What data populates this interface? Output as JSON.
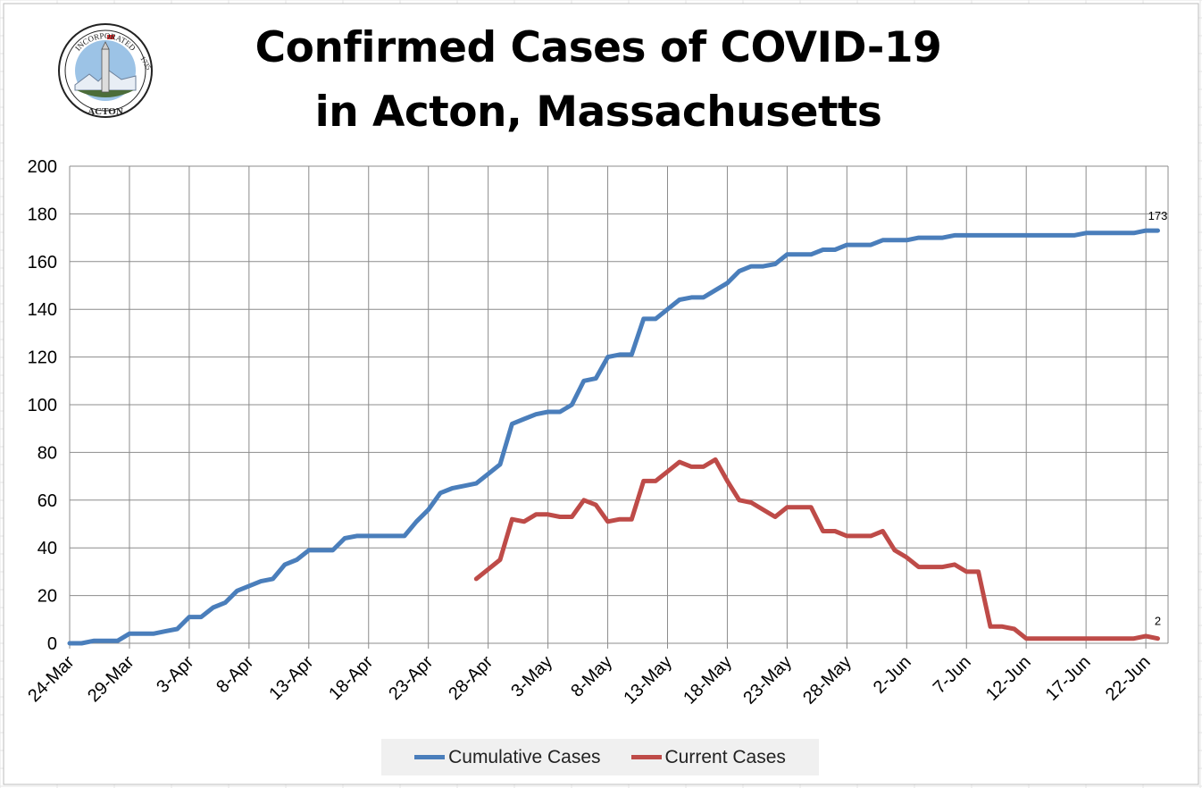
{
  "logo": {
    "top_text": "INCORPORATED",
    "year": "1735",
    "bottom_text": "ACTON"
  },
  "chart_data": {
    "type": "line",
    "title": "Confirmed Cases of COVID-19",
    "subtitle": "in Acton, Massachusetts",
    "xlabel": "",
    "ylabel": "",
    "start_date": "24-Mar",
    "x_tick_labels": [
      "24-Mar",
      "29-Mar",
      "3-Apr",
      "8-Apr",
      "13-Apr",
      "18-Apr",
      "23-Apr",
      "28-Apr",
      "3-May",
      "8-May",
      "13-May",
      "18-May",
      "23-May",
      "28-May",
      "2-Jun",
      "7-Jun",
      "12-Jun",
      "17-Jun",
      "22-Jun"
    ],
    "x_tick_every_days": 5,
    "ylim": [
      0,
      200
    ],
    "y_ticks": [
      0,
      20,
      40,
      60,
      80,
      100,
      120,
      140,
      160,
      180,
      200
    ],
    "grid": true,
    "legend_position": "bottom",
    "series": [
      {
        "name": "Cumulative Cases",
        "color": "#4a7ebb",
        "start_index": 0,
        "values": [
          0,
          0,
          1,
          1,
          1,
          4,
          4,
          4,
          5,
          6,
          11,
          11,
          15,
          17,
          22,
          24,
          26,
          27,
          33,
          35,
          39,
          39,
          39,
          44,
          45,
          45,
          45,
          45,
          45,
          51,
          56,
          63,
          65,
          66,
          67,
          71,
          75,
          92,
          94,
          96,
          97,
          97,
          100,
          110,
          111,
          120,
          121,
          121,
          136,
          136,
          140,
          144,
          145,
          145,
          148,
          151,
          156,
          158,
          158,
          159,
          163,
          163,
          163,
          165,
          165,
          167,
          167,
          167,
          169,
          169,
          169,
          170,
          170,
          170,
          171,
          171,
          171,
          171,
          171,
          171,
          171,
          171,
          171,
          171,
          171,
          172,
          172,
          172,
          172,
          172,
          173,
          173
        ],
        "end_label": "173"
      },
      {
        "name": "Current Cases",
        "color": "#be4b48",
        "start_index": 34,
        "values": [
          27,
          31,
          35,
          52,
          51,
          54,
          54,
          53,
          53,
          60,
          58,
          51,
          52,
          52,
          68,
          68,
          72,
          76,
          74,
          74,
          77,
          68,
          60,
          59,
          56,
          53,
          57,
          57,
          57,
          47,
          47,
          45,
          45,
          45,
          47,
          39,
          36,
          32,
          32,
          32,
          33,
          30,
          30,
          7,
          7,
          6,
          2,
          2,
          2,
          2,
          2,
          2,
          2,
          2,
          2,
          2,
          3,
          2
        ],
        "end_label": "2"
      }
    ]
  }
}
